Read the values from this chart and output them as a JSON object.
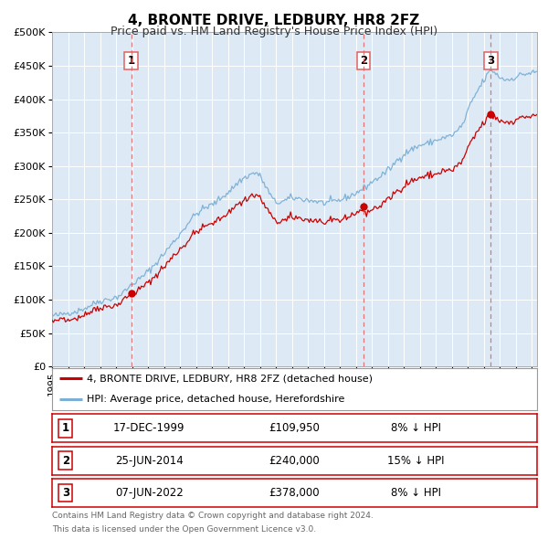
{
  "title": "4, BRONTE DRIVE, LEDBURY, HR8 2FZ",
  "subtitle": "Price paid vs. HM Land Registry's House Price Index (HPI)",
  "legend_property": "4, BRONTE DRIVE, LEDBURY, HR8 2FZ (detached house)",
  "legend_hpi": "HPI: Average price, detached house, Herefordshire",
  "footer1": "Contains HM Land Registry data © Crown copyright and database right 2024.",
  "footer2": "This data is licensed under the Open Government Licence v3.0.",
  "transactions": [
    {
      "num": 1,
      "date": "17-DEC-1999",
      "price": "£109,950",
      "pct": "8% ↓ HPI",
      "year": 1999.958,
      "value": 109950
    },
    {
      "num": 2,
      "date": "25-JUN-2014",
      "price": "£240,000",
      "pct": "15% ↓ HPI",
      "year": 2014.479,
      "value": 240000
    },
    {
      "num": 3,
      "date": "07-JUN-2022",
      "price": "£378,000",
      "pct": "8% ↓ HPI",
      "year": 2022.433,
      "value": 378000
    }
  ],
  "hpi_color": "#7bafd4",
  "property_color": "#cc0000",
  "vline_color": "#e06060",
  "background_color": "#ffffff",
  "plot_bg_color": "#ddeaf6",
  "ylim": [
    0,
    500000
  ],
  "ytick_vals": [
    0,
    50000,
    100000,
    150000,
    200000,
    250000,
    300000,
    350000,
    400000,
    450000,
    500000
  ],
  "ytick_labels": [
    "£0",
    "£50K",
    "£100K",
    "£150K",
    "£200K",
    "£250K",
    "£300K",
    "£350K",
    "£400K",
    "£450K",
    "£500K"
  ],
  "xlim_start": 1995.0,
  "xlim_end": 2025.33
}
